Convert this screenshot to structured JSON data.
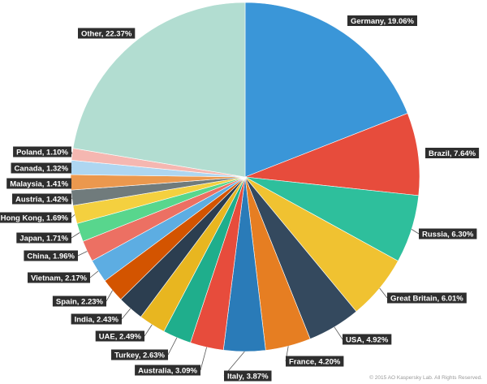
{
  "chart_data": {
    "type": "pie",
    "start_angle_deg": 0,
    "direction": "clockwise",
    "slices": [
      {
        "label": "Germany",
        "value": 19.06,
        "text": "Germany, 19.06%",
        "color": "#3a96d8"
      },
      {
        "label": "Brazil",
        "value": 7.64,
        "text": "Brazil, 7.64%",
        "color": "#e74c3c"
      },
      {
        "label": "Russia",
        "value": 6.3,
        "text": "Russia, 6.30%",
        "color": "#2ebf9c"
      },
      {
        "label": "Great Britain",
        "value": 6.01,
        "text": "Great Britain, 6.01%",
        "color": "#f0c231"
      },
      {
        "label": "USA",
        "value": 4.92,
        "text": "USA, 4.92%",
        "color": "#34495e"
      },
      {
        "label": "France",
        "value": 4.2,
        "text": "France, 4.20%",
        "color": "#e67e22"
      },
      {
        "label": "Italy",
        "value": 3.87,
        "text": "Italy, 3.87%",
        "color": "#2a7bb8"
      },
      {
        "label": "Australia",
        "value": 3.09,
        "text": "Australia, 3.09%",
        "color": "#e74c3c"
      },
      {
        "label": "Turkey",
        "value": 2.63,
        "text": "Turkey, 2.63%",
        "color": "#1fae8c"
      },
      {
        "label": "UAE",
        "value": 2.49,
        "text": "UAE, 2.49%",
        "color": "#e8b620"
      },
      {
        "label": "India",
        "value": 2.43,
        "text": "India, 2.43%",
        "color": "#2c3e50"
      },
      {
        "label": "Spain",
        "value": 2.23,
        "text": "Spain, 2.23%",
        "color": "#d35400"
      },
      {
        "label": "Vietnam",
        "value": 2.17,
        "text": "Vietnam, 2.17%",
        "color": "#5dade2"
      },
      {
        "label": "China",
        "value": 1.96,
        "text": "China, 1.96%",
        "color": "#ec7063"
      },
      {
        "label": "Japan",
        "value": 1.71,
        "text": "Japan, 1.71%",
        "color": "#58d68d"
      },
      {
        "label": "Hong Kong",
        "value": 1.69,
        "text": "Hong Kong, 1.69%",
        "color": "#f4d03f"
      },
      {
        "label": "Austria",
        "value": 1.42,
        "text": "Austria, 1.42%",
        "color": "#707b7c"
      },
      {
        "label": "Malaysia",
        "value": 1.41,
        "text": "Malaysia, 1.41%",
        "color": "#eb984e"
      },
      {
        "label": "Canada",
        "value": 1.32,
        "text": "Canada, 1.32%",
        "color": "#aed6f1"
      },
      {
        "label": "Poland",
        "value": 1.1,
        "text": "Poland, 1.10%",
        "color": "#f5b7b1"
      },
      {
        "label": "Other",
        "value": 22.37,
        "text": "Other, 22.37%",
        "color": "#b2ddd1"
      }
    ]
  },
  "footer": {
    "copyright": "© 2015 AO Kaspersky Lab. All Rights Reserved."
  }
}
